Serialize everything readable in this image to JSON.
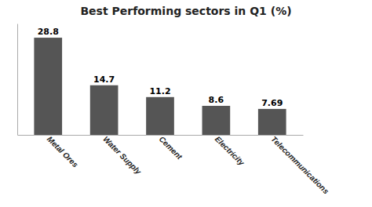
{
  "chart_data": {
    "type": "bar",
    "title": "Best Performing sectors in Q1 (%)",
    "categories": [
      "Metal Ores",
      "Water Supply",
      "Cement",
      "Electricity",
      "Telecommunications"
    ],
    "values": [
      28.8,
      14.7,
      11.2,
      8.6,
      7.69
    ],
    "color": "#555555",
    "ylim": [
      0,
      33
    ],
    "grid": false,
    "data_labels": true,
    "tick_labels": "x"
  }
}
